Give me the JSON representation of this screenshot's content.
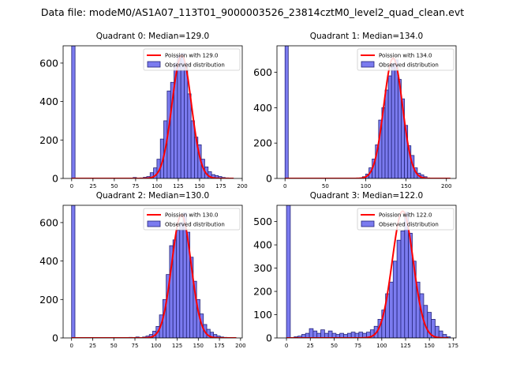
{
  "figure": {
    "suptitle": "Data file: modeM0/AS1A07_113T01_9000003526_23814cztM0_level2_quad_clean.evt",
    "colors": {
      "bar_fill": "#7b7bef",
      "bar_edge": "#24247a",
      "fit_line": "#ff0000",
      "axis": "#000000",
      "background": "#ffffff"
    }
  },
  "chart_data": [
    {
      "type": "bar",
      "title": "Quadrant 0: Median=129.0",
      "xlabel": "",
      "ylabel": "",
      "xlim": [
        -10,
        200
      ],
      "ylim": [
        0,
        690
      ],
      "xticks": [
        0,
        25,
        50,
        75,
        100,
        125,
        150,
        175,
        200
      ],
      "yticks": [
        0,
        200,
        400,
        600
      ],
      "legend": {
        "position": "top-right",
        "line_label": "Poission with 129.0",
        "bar_label": "Observed distribution"
      },
      "bin_width": 4,
      "bins": [
        [
          0,
          690
        ],
        [
          72,
          5
        ],
        [
          80,
          3
        ],
        [
          84,
          6
        ],
        [
          88,
          10
        ],
        [
          92,
          30
        ],
        [
          96,
          55
        ],
        [
          100,
          100
        ],
        [
          104,
          205
        ],
        [
          108,
          300
        ],
        [
          112,
          455
        ],
        [
          116,
          500
        ],
        [
          120,
          600
        ],
        [
          124,
          640
        ],
        [
          128,
          650
        ],
        [
          132,
          600
        ],
        [
          136,
          440
        ],
        [
          140,
          300
        ],
        [
          144,
          215
        ],
        [
          148,
          175
        ],
        [
          152,
          100
        ],
        [
          156,
          60
        ],
        [
          160,
          35
        ],
        [
          164,
          20
        ],
        [
          168,
          15
        ],
        [
          172,
          10
        ],
        [
          176,
          5
        ],
        [
          180,
          3
        ]
      ],
      "poisson_mean": 129.0,
      "poisson_peak": 640,
      "fit_range": [
        0,
        190
      ]
    },
    {
      "type": "bar",
      "title": "Quadrant 1: Median=134.0",
      "xlabel": "",
      "ylabel": "",
      "xlim": [
        -10,
        212
      ],
      "ylim": [
        0,
        750
      ],
      "xticks": [
        0,
        50,
        100,
        150,
        200
      ],
      "yticks": [
        0,
        200,
        400,
        600
      ],
      "legend": {
        "position": "top-right",
        "line_label": "Poission with 134.0",
        "bar_label": "Observed distribution"
      },
      "bin_width": 4,
      "bins": [
        [
          0,
          750
        ],
        [
          96,
          10
        ],
        [
          100,
          25
        ],
        [
          104,
          60
        ],
        [
          108,
          110
        ],
        [
          112,
          190
        ],
        [
          116,
          330
        ],
        [
          120,
          400
        ],
        [
          124,
          500
        ],
        [
          128,
          580
        ],
        [
          132,
          650
        ],
        [
          136,
          670
        ],
        [
          140,
          560
        ],
        [
          144,
          450
        ],
        [
          148,
          300
        ],
        [
          152,
          185
        ],
        [
          156,
          130
        ],
        [
          160,
          60
        ],
        [
          164,
          30
        ],
        [
          168,
          20
        ],
        [
          172,
          10
        ]
      ],
      "poisson_mean": 134.0,
      "poisson_peak": 680,
      "fit_range": [
        0,
        205
      ]
    },
    {
      "type": "bar",
      "title": "Quadrant 2: Median=130.0",
      "xlabel": "",
      "ylabel": "",
      "xlim": [
        -10,
        202
      ],
      "ylim": [
        0,
        690
      ],
      "xticks": [
        0,
        25,
        50,
        75,
        100,
        125,
        150,
        175,
        200
      ],
      "yticks": [
        0,
        200,
        400,
        600
      ],
      "legend": {
        "position": "top-right",
        "line_label": "Poission with 130.0",
        "bar_label": "Observed distribution"
      },
      "bin_width": 4,
      "bins": [
        [
          0,
          690
        ],
        [
          68,
          3
        ],
        [
          76,
          5
        ],
        [
          84,
          5
        ],
        [
          88,
          10
        ],
        [
          92,
          18
        ],
        [
          96,
          35
        ],
        [
          100,
          60
        ],
        [
          104,
          120
        ],
        [
          108,
          200
        ],
        [
          112,
          330
        ],
        [
          116,
          480
        ],
        [
          120,
          510
        ],
        [
          124,
          560
        ],
        [
          128,
          600
        ],
        [
          132,
          650
        ],
        [
          136,
          550
        ],
        [
          140,
          420
        ],
        [
          144,
          295
        ],
        [
          148,
          200
        ],
        [
          152,
          125
        ],
        [
          156,
          70
        ],
        [
          160,
          45
        ],
        [
          164,
          30
        ],
        [
          168,
          18
        ],
        [
          172,
          10
        ],
        [
          176,
          5
        ],
        [
          180,
          3
        ]
      ],
      "poisson_mean": 130.0,
      "poisson_peak": 640,
      "fit_range": [
        0,
        195
      ]
    },
    {
      "type": "bar",
      "title": "Quadrant 3: Median=122.0",
      "xlabel": "",
      "ylabel": "",
      "xlim": [
        -10,
        178
      ],
      "ylim": [
        0,
        570
      ],
      "xticks": [
        0,
        25,
        50,
        75,
        100,
        125,
        150,
        175
      ],
      "yticks": [
        0,
        100,
        200,
        300,
        400,
        500
      ],
      "legend": {
        "position": "top-right",
        "line_label": "Poission with 122.0",
        "bar_label": "Observed distribution"
      },
      "bin_width": 4,
      "bins": [
        [
          0,
          570
        ],
        [
          8,
          5
        ],
        [
          12,
          8
        ],
        [
          16,
          15
        ],
        [
          20,
          20
        ],
        [
          24,
          40
        ],
        [
          28,
          30
        ],
        [
          32,
          20
        ],
        [
          36,
          35
        ],
        [
          40,
          20
        ],
        [
          44,
          30
        ],
        [
          48,
          20
        ],
        [
          52,
          15
        ],
        [
          56,
          20
        ],
        [
          60,
          15
        ],
        [
          64,
          20
        ],
        [
          68,
          25
        ],
        [
          72,
          20
        ],
        [
          76,
          25
        ],
        [
          80,
          20
        ],
        [
          84,
          25
        ],
        [
          88,
          35
        ],
        [
          92,
          50
        ],
        [
          96,
          80
        ],
        [
          100,
          120
        ],
        [
          104,
          190
        ],
        [
          108,
          240
        ],
        [
          112,
          330
        ],
        [
          116,
          420
        ],
        [
          120,
          460
        ],
        [
          124,
          540
        ],
        [
          128,
          450
        ],
        [
          132,
          330
        ],
        [
          136,
          240
        ],
        [
          140,
          190
        ],
        [
          144,
          140
        ],
        [
          148,
          110
        ],
        [
          152,
          80
        ],
        [
          156,
          50
        ],
        [
          160,
          30
        ],
        [
          164,
          15
        ],
        [
          168,
          5
        ]
      ],
      "poisson_mean": 122.0,
      "poisson_peak": 545,
      "fit_range": [
        0,
        170
      ]
    }
  ]
}
